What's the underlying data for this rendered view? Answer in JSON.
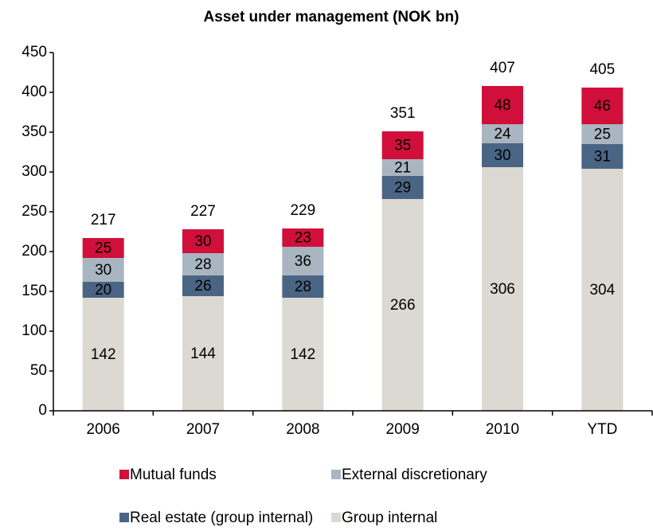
{
  "chart_data": {
    "type": "stacked_bar",
    "title": "Asset under management (NOK bn)",
    "categories": [
      "2006",
      "2007",
      "2008",
      "2009",
      "2010",
      "YTD"
    ],
    "series": [
      {
        "name": "Group internal",
        "color": "#dcd8d2",
        "values": [
          142,
          144,
          142,
          266,
          306,
          304
        ]
      },
      {
        "name": "Real estate (group internal)",
        "color": "#4a6584",
        "values": [
          20,
          26,
          28,
          29,
          30,
          31
        ]
      },
      {
        "name": "External discretionary",
        "color": "#a9b5c0",
        "values": [
          30,
          28,
          36,
          21,
          24,
          25
        ]
      },
      {
        "name": "Mutual funds",
        "color": "#d0103a",
        "values": [
          25,
          30,
          23,
          35,
          48,
          46
        ]
      }
    ],
    "totals": [
      217,
      227,
      229,
      351,
      407,
      405
    ],
    "ylim": [
      0,
      450
    ],
    "yticks": [
      0,
      50,
      100,
      150,
      200,
      250,
      300,
      350,
      400,
      450
    ],
    "grid": false
  }
}
